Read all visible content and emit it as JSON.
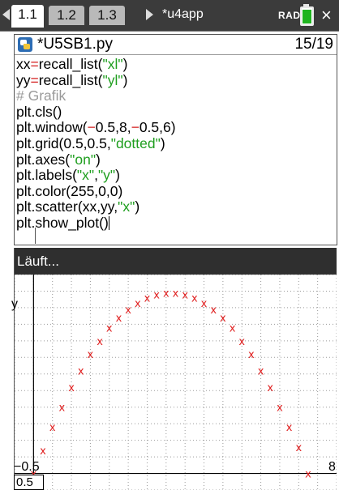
{
  "tabs": [
    {
      "label": "1.1",
      "active": true
    },
    {
      "label": "1.2",
      "active": false
    },
    {
      "label": "1.3",
      "active": false
    }
  ],
  "document_title": "*u4app",
  "angle_mode": "RAD",
  "editor": {
    "file_name": "*U5SB1.py",
    "line_counter": "15/19"
  },
  "code": {
    "l1": {
      "a": "xx",
      "eq": "=",
      "fn": "recall_list(",
      "str": "\"xl\"",
      "end": ")"
    },
    "l2": {
      "a": "yy",
      "eq": "=",
      "fn": "recall_list(",
      "str": "\"yl\"",
      "end": ")"
    },
    "l3": {
      "comment": "# Grafik"
    },
    "l4": {
      "text": "plt.cls()"
    },
    "l5": {
      "fn": "plt.window(",
      "m1": "−",
      "a": "0.5,8,",
      "m2": "−",
      "b": "0.5,6)"
    },
    "l6": {
      "fn": "plt.grid(0.5,0.5,",
      "str": "\"dotted\"",
      "end": ")"
    },
    "l7": {
      "fn": "plt.axes(",
      "str": "\"on\"",
      "end": ")"
    },
    "l8": {
      "fn": "plt.labels(",
      "s1": "\"x\"",
      "c": ",",
      "s2": "\"y\"",
      "end": ")"
    },
    "l9": {
      "text": "plt.color(255,0,0)"
    },
    "l10": {
      "fn": "plt.scatter(xx,yy,",
      "str": "\"x\"",
      "end": ")"
    },
    "l11": {
      "text": "plt.show_plot()"
    }
  },
  "output": {
    "status": "Läuft..."
  },
  "plot": {
    "y_axis_label": "y",
    "x_axis_left_label": "−0.5",
    "x_axis_right_label": "8",
    "xmin_value": "0.5"
  },
  "chart_data": {
    "type": "scatter",
    "marker": "x",
    "marker_color": "#e02020",
    "xlim": [
      -0.5,
      8
    ],
    "ylim": [
      -0.5,
      6
    ],
    "grid": {
      "step_x": 0.5,
      "step_y": 0.5,
      "style": "dotted"
    },
    "axes": "on",
    "points": [
      [
        0.0,
        0.0
      ],
      [
        0.25,
        0.7
      ],
      [
        0.5,
        1.4
      ],
      [
        0.75,
        2.0
      ],
      [
        1.0,
        2.6
      ],
      [
        1.25,
        3.1
      ],
      [
        1.5,
        3.6
      ],
      [
        1.75,
        4.0
      ],
      [
        2.0,
        4.4
      ],
      [
        2.25,
        4.7
      ],
      [
        2.5,
        4.95
      ],
      [
        2.75,
        5.15
      ],
      [
        3.0,
        5.3
      ],
      [
        3.25,
        5.4
      ],
      [
        3.5,
        5.45
      ],
      [
        3.75,
        5.45
      ],
      [
        4.0,
        5.4
      ],
      [
        4.25,
        5.3
      ],
      [
        4.5,
        5.15
      ],
      [
        4.75,
        4.95
      ],
      [
        5.0,
        4.7
      ],
      [
        5.25,
        4.4
      ],
      [
        5.5,
        4.0
      ],
      [
        5.75,
        3.6
      ],
      [
        6.0,
        3.1
      ],
      [
        6.25,
        2.6
      ],
      [
        6.5,
        2.0
      ],
      [
        6.75,
        1.4
      ],
      [
        7.0,
        0.8
      ],
      [
        7.25,
        0.0
      ],
      [
        7.5,
        -0.7
      ]
    ]
  }
}
